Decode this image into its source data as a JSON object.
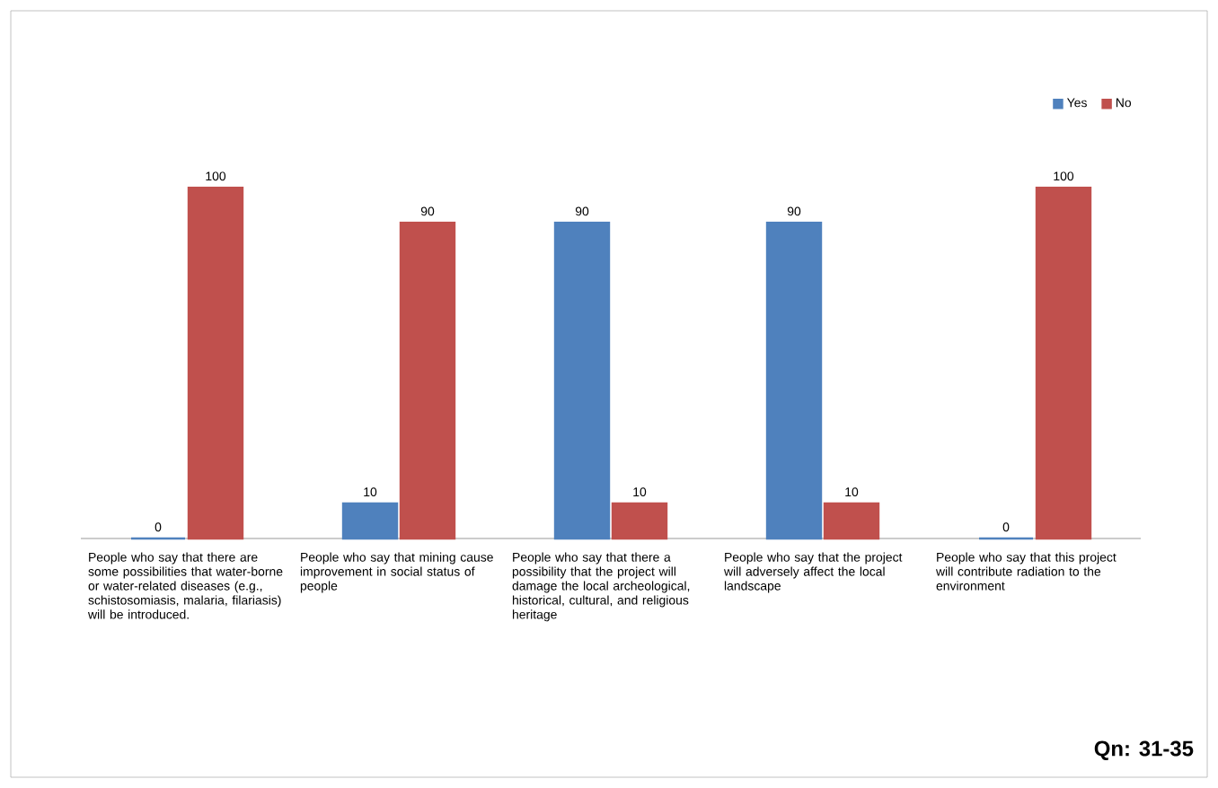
{
  "chart_data": {
    "type": "bar",
    "categories": [
      "People who say that there are some possibilities that water-borne or water-related diseases (e.g., schistosomiasis, malaria, filariasis) will be introduced.",
      "People who say that mining cause improvement in social status of people",
      "People who say that there a possibility that the project will damage the local archeological, historical, cultural, and religious heritage",
      "People who say that the project will adversely affect the local landscape",
      "People who say that this project will contribute radiation to the environment"
    ],
    "series": [
      {
        "name": "Yes",
        "color": "#4f81bd",
        "values": [
          0,
          10,
          90,
          90,
          0
        ]
      },
      {
        "name": "No",
        "color": "#c0504d",
        "values": [
          100,
          90,
          10,
          10,
          100
        ]
      }
    ],
    "data_labels": true,
    "legend": "top right",
    "grid": false,
    "tick_labels": "x",
    "annotations": [
      "Qn: 31-35"
    ]
  }
}
